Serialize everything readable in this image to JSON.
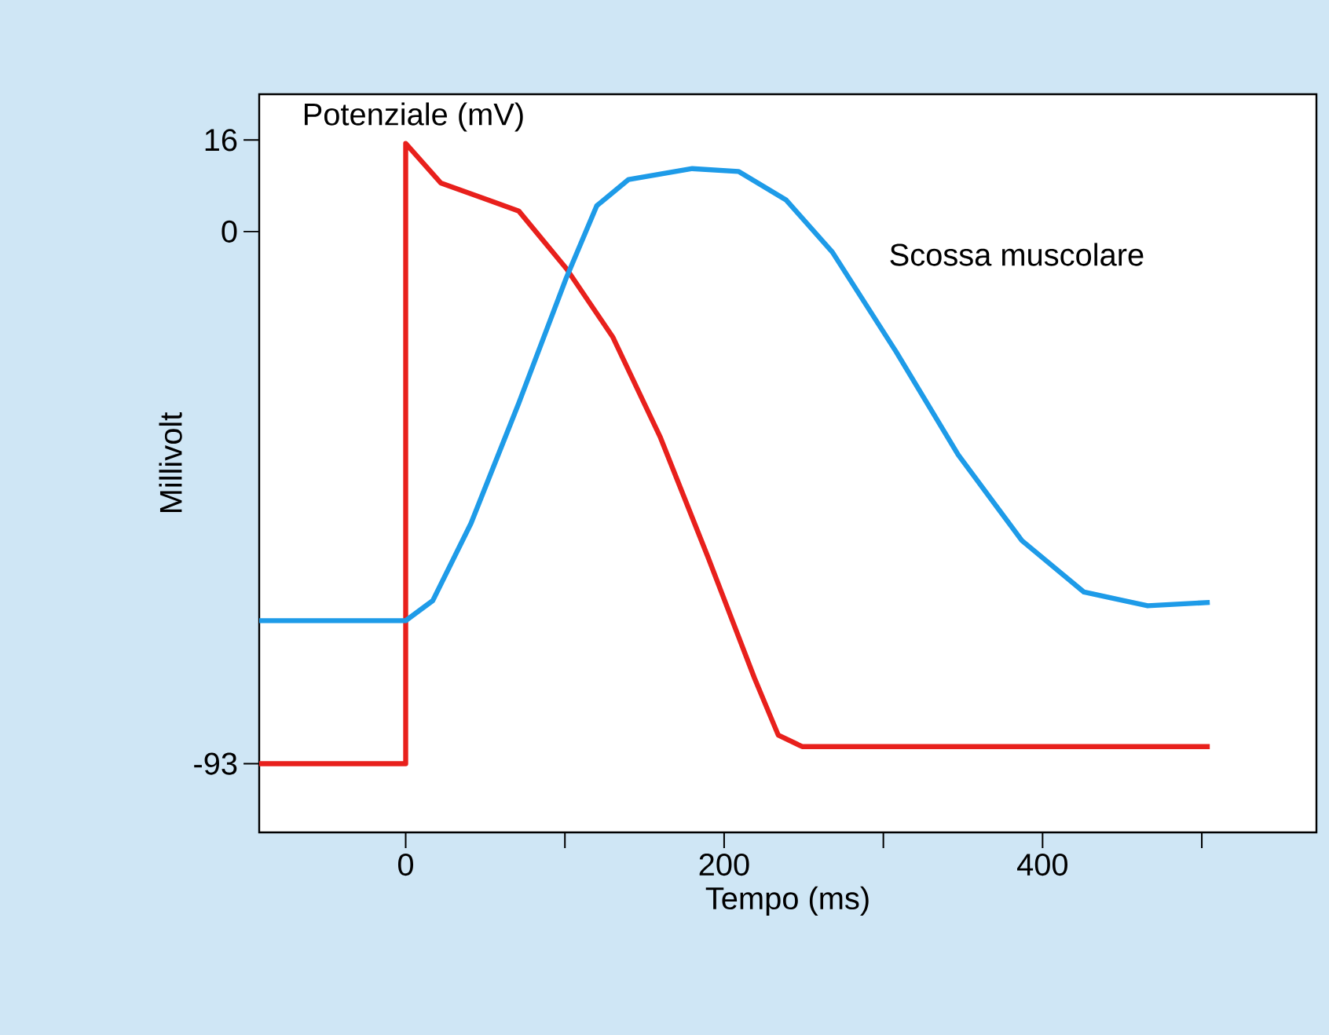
{
  "chart_data": {
    "type": "line",
    "xlabel": "Tempo (ms)",
    "ylabel": "Millivolt",
    "xlim": [
      -92,
      572
    ],
    "ylim": [
      -105,
      24
    ],
    "xticks": [
      0,
      {
        "value": 100,
        "label": null
      },
      200,
      {
        "value": 300,
        "label": null
      },
      400,
      {
        "value": 500,
        "label": null
      }
    ],
    "yticks": [
      -93,
      0,
      16
    ],
    "series": [
      {
        "name": "Potenziale (mV)",
        "color": "#e8201c",
        "x": [
          -92,
          0,
          0,
          22,
          71,
          101,
          130,
          160,
          190,
          219,
          234,
          249,
          505
        ],
        "values": [
          -93,
          -93,
          15.4,
          8.5,
          3.6,
          -6.5,
          -18.4,
          -36,
          -57,
          -78,
          -88,
          -90,
          -90
        ]
      },
      {
        "name": "Scossa muscolare",
        "color": "#1e9be8",
        "x": [
          -92,
          0,
          17,
          41,
          71,
          101,
          120,
          140,
          180,
          209,
          239,
          268,
          308,
          347,
          387,
          426,
          466,
          505
        ],
        "values": [
          -68,
          -68,
          -64.5,
          -51,
          -30,
          -8,
          4.5,
          9.1,
          11,
          10.5,
          5.5,
          -3.6,
          -21,
          -39,
          -54,
          -63,
          -65.4,
          -64.8
        ]
      }
    ]
  }
}
